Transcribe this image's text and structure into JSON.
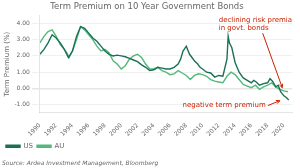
{
  "chart_data": {
    "type": "line",
    "title": "Term Premium on 10 Year Government Bonds",
    "ylabel": "Term Premium (%)",
    "source": "Source: Ardea Investment Management, Bloomberg",
    "annotations": [
      {
        "text": "declining risk premia\nin govt. bonds",
        "color": "#cc2200"
      },
      {
        "text": "negative term premium",
        "color": "#cc2200"
      }
    ],
    "xlim": [
      1990,
      2021
    ],
    "xticks": [
      1990,
      1992,
      1994,
      1996,
      1998,
      2000,
      2002,
      2004,
      2006,
      2008,
      2010,
      2012,
      2014,
      2016,
      2018,
      2020
    ],
    "ylim": [
      -1.5,
      4.5
    ],
    "yticks": [
      {
        "value": -1,
        "label": "-1.00"
      },
      {
        "value": 0,
        "label": "0.00"
      },
      {
        "value": 1,
        "label": "1.00"
      },
      {
        "value": 2,
        "label": "2.00"
      },
      {
        "value": 3,
        "label": "3.00"
      },
      {
        "value": 4,
        "label": "4.00"
      }
    ],
    "grid": "y",
    "legend": "bottom",
    "series": [
      {
        "name": "US",
        "color": "#1a7057",
        "x": [
          1990.0,
          1990.5,
          1991.0,
          1991.5,
          1992.0,
          1992.5,
          1993.0,
          1993.5,
          1994.0,
          1994.5,
          1995.0,
          1995.5,
          1996.0,
          1996.5,
          1997.0,
          1997.5,
          1998.0,
          1998.5,
          1999.0,
          1999.5,
          2000.0,
          2000.5,
          2001.0,
          2001.5,
          2002.0,
          2002.5,
          2003.0,
          2003.5,
          2004.0,
          2004.5,
          2005.0,
          2005.5,
          2006.0,
          2006.5,
          2007.0,
          2007.3,
          2007.6,
          2008.0,
          2008.4,
          2008.7,
          2009.0,
          2009.4,
          2009.7,
          2010.0,
          2010.5,
          2011.0,
          2011.5,
          2012.0,
          2012.5,
          2013.0,
          2013.15,
          2013.3,
          2013.6,
          2014.0,
          2014.5,
          2015.0,
          2015.5,
          2016.0,
          2016.3,
          2016.6,
          2017.0,
          2017.5,
          2018.0,
          2018.3,
          2018.6,
          2019.0,
          2019.3,
          2019.6,
          2020.0,
          2020.3,
          2020.6
        ],
        "values": [
          2.1,
          2.4,
          2.8,
          3.3,
          3.1,
          2.8,
          2.4,
          1.9,
          2.3,
          3.2,
          3.8,
          3.7,
          3.4,
          3.1,
          2.9,
          2.6,
          2.3,
          2.1,
          2.0,
          2.05,
          2.0,
          1.95,
          1.85,
          1.75,
          1.65,
          1.45,
          1.3,
          1.1,
          1.15,
          1.3,
          1.25,
          1.2,
          1.2,
          1.3,
          1.5,
          1.8,
          2.3,
          2.6,
          2.1,
          1.9,
          1.7,
          1.5,
          1.3,
          1.2,
          1.0,
          0.95,
          0.7,
          0.8,
          0.75,
          1.8,
          3.2,
          2.8,
          2.5,
          1.6,
          1.0,
          0.65,
          0.5,
          0.35,
          0.5,
          0.4,
          0.2,
          0.3,
          0.35,
          0.6,
          0.45,
          0.1,
          0.2,
          -0.2,
          -0.45,
          -0.55,
          -0.7
        ]
      },
      {
        "name": "AU",
        "color": "#55b87a",
        "x": [
          1990.0,
          1990.5,
          1991.0,
          1991.5,
          1992.0,
          1992.5,
          1993.0,
          1993.3,
          1993.6,
          1994.0,
          1994.5,
          1995.0,
          1995.5,
          1996.0,
          1996.5,
          1997.0,
          1997.5,
          1998.0,
          1998.5,
          1999.0,
          1999.5,
          2000.0,
          2000.5,
          2001.0,
          2001.5,
          2002.0,
          2002.5,
          2003.0,
          2003.5,
          2004.0,
          2004.5,
          2005.0,
          2005.5,
          2006.0,
          2006.5,
          2007.0,
          2007.5,
          2008.0,
          2008.5,
          2009.0,
          2009.5,
          2010.0,
          2010.5,
          2011.0,
          2011.5,
          2012.0,
          2012.5,
          2013.0,
          2013.5,
          2014.0,
          2014.5,
          2015.0,
          2015.5,
          2016.0,
          2016.5,
          2017.0,
          2017.5,
          2018.0,
          2018.5,
          2019.0,
          2019.5,
          2020.0,
          2020.5
        ],
        "values": [
          2.8,
          3.2,
          3.5,
          3.6,
          3.2,
          2.7,
          2.4,
          2.2,
          1.9,
          2.3,
          3.0,
          3.8,
          3.6,
          3.3,
          3.0,
          2.6,
          2.3,
          2.4,
          2.2,
          1.7,
          1.5,
          1.2,
          1.4,
          1.8,
          2.0,
          2.1,
          1.9,
          1.5,
          1.2,
          1.2,
          1.3,
          1.1,
          1.0,
          0.85,
          0.9,
          1.1,
          0.95,
          0.8,
          0.55,
          0.8,
          0.9,
          0.85,
          0.75,
          0.55,
          0.45,
          0.4,
          0.35,
          0.75,
          1.0,
          0.85,
          0.55,
          0.25,
          0.15,
          0.05,
          0.2,
          -0.05,
          0.1,
          0.2,
          0.35,
          0.1,
          -0.05,
          -0.15,
          -0.2
        ]
      }
    ]
  }
}
